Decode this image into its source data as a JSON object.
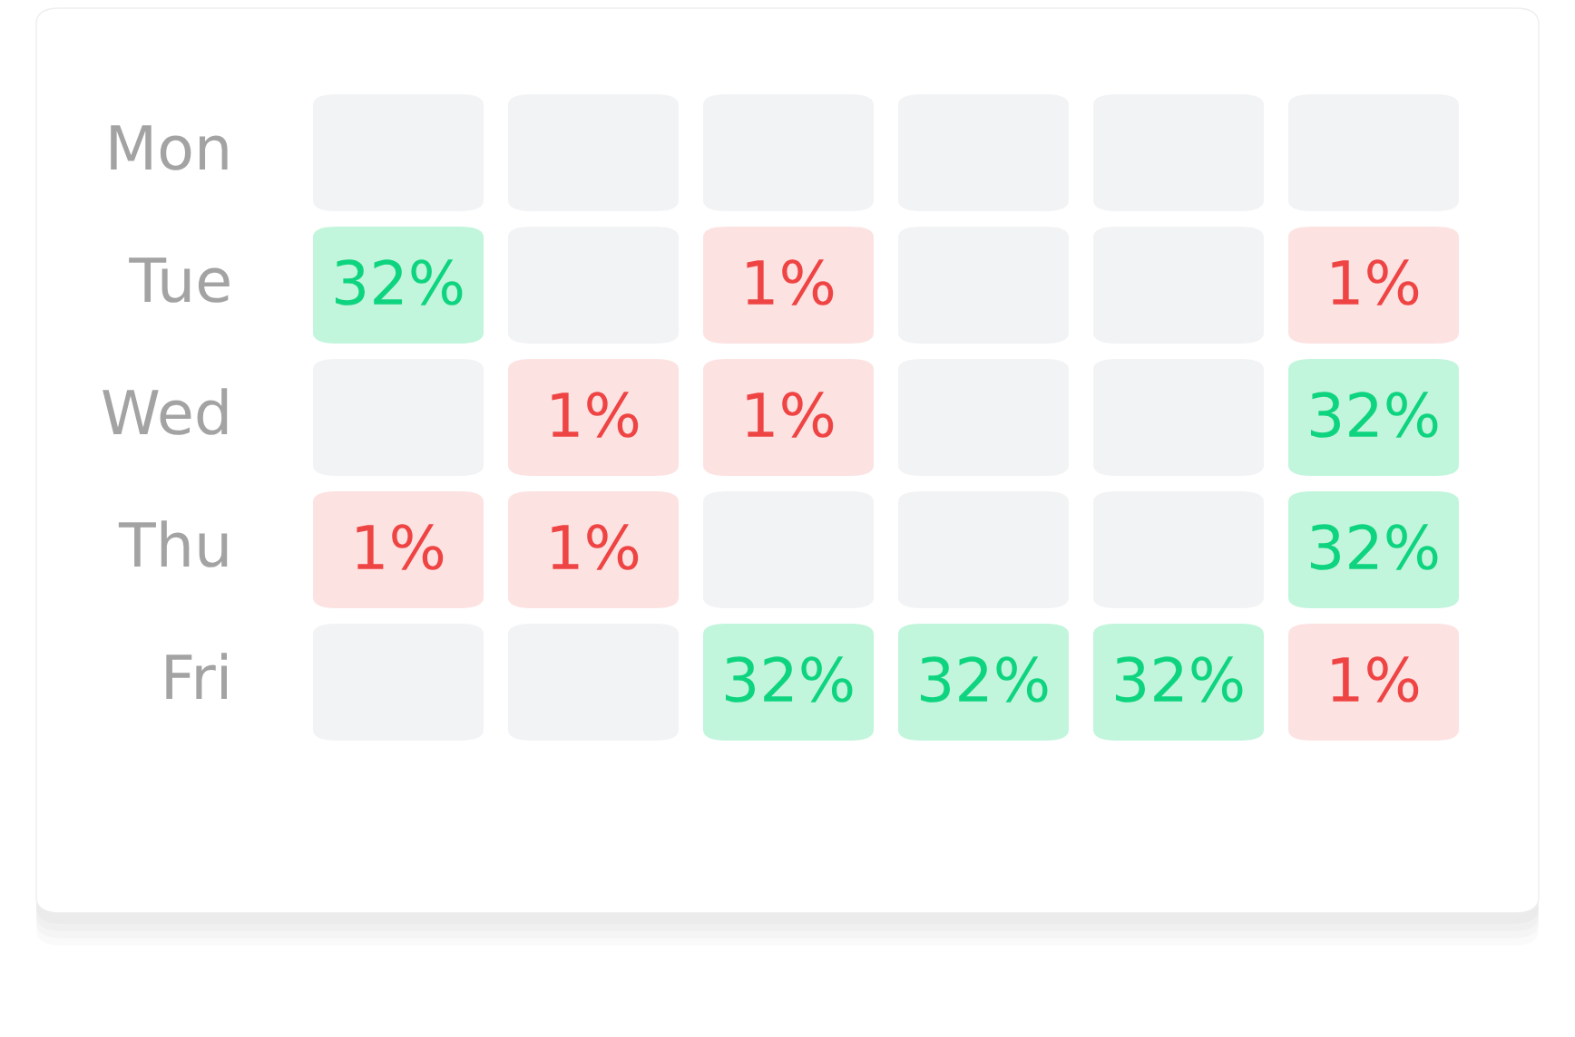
{
  "chart_data": {
    "type": "heatmap",
    "categories": [
      null,
      null,
      null,
      null,
      null,
      null
    ],
    "y_categories": [
      "Mon",
      "Tue",
      "Wed",
      "Thu",
      "Fri"
    ],
    "cells": [
      [
        null,
        null,
        null,
        null,
        null,
        null
      ],
      [
        32,
        null,
        1,
        null,
        null,
        1
      ],
      [
        null,
        1,
        1,
        null,
        null,
        32
      ],
      [
        1,
        1,
        null,
        null,
        null,
        32
      ],
      [
        null,
        null,
        32,
        32,
        32,
        1
      ]
    ],
    "cell_labels": [
      [
        null,
        null,
        null,
        null,
        null,
        null
      ],
      [
        "32%",
        null,
        "1%",
        null,
        null,
        "1%"
      ],
      [
        null,
        "1%",
        "1%",
        null,
        null,
        "32%"
      ],
      [
        "1%",
        "1%",
        null,
        null,
        null,
        "32%"
      ],
      [
        null,
        null,
        "32%",
        "32%",
        "32%",
        "1%"
      ]
    ],
    "data_labels": true
  }
}
